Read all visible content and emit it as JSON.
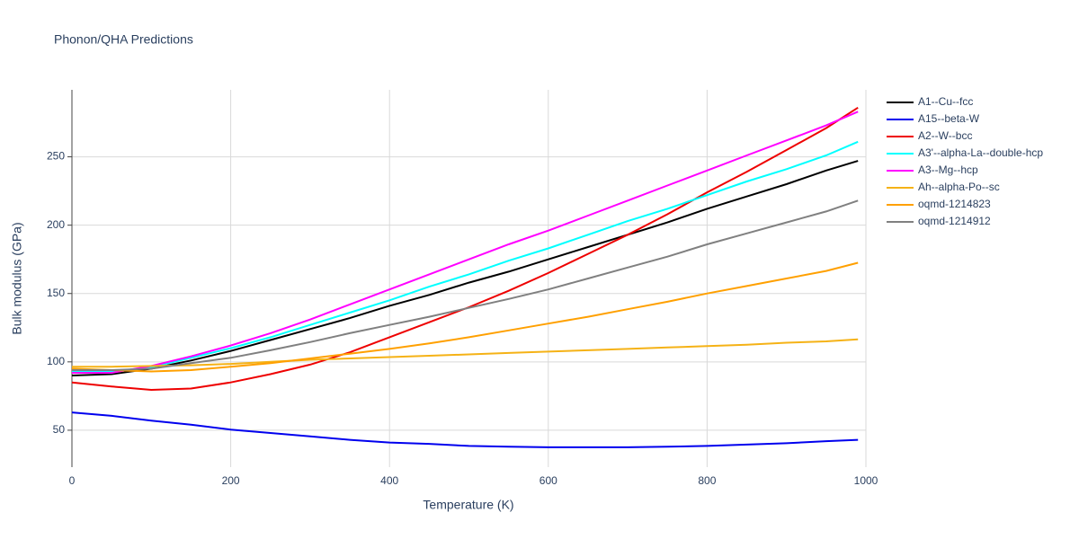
{
  "chart_data": {
    "type": "line",
    "title": "Phonon/QHA Predictions",
    "x_label": "Temperature (K)",
    "y_label": "Bulk modulus (GPa)",
    "x": [
      0,
      50,
      100,
      150,
      200,
      250,
      300,
      350,
      400,
      450,
      500,
      550,
      600,
      650,
      700,
      750,
      800,
      850,
      900,
      950,
      990
    ],
    "series": [
      {
        "name": "A1--Cu--fcc",
        "color": "#000000",
        "values": [
          90,
          91,
          95,
          101,
          108,
          116,
          124,
          132,
          141,
          149,
          158,
          166,
          175,
          184,
          193,
          202,
          212,
          221,
          230,
          240,
          247
        ]
      },
      {
        "name": "A15--beta-W",
        "color": "#0000ee",
        "values": [
          63,
          60.5,
          57,
          54,
          50.5,
          48,
          45.5,
          43,
          41,
          40,
          38.5,
          38,
          37.5,
          37.5,
          37.5,
          38,
          38.5,
          39.5,
          40.5,
          42,
          43
        ]
      },
      {
        "name": "A2--W--bcc",
        "color": "#ee0000",
        "values": [
          85,
          82,
          79.5,
          80.5,
          85,
          91,
          98,
          107,
          118,
          129,
          140,
          152,
          165,
          179,
          193,
          208,
          224,
          239,
          255,
          271,
          286
        ]
      },
      {
        "name": "A3'--alpha-La--double-hcp",
        "color": "#00ffff",
        "values": [
          93,
          93,
          96,
          103,
          110,
          118,
          127,
          136,
          145,
          155,
          164,
          174,
          183,
          193,
          203,
          212,
          222,
          232,
          241,
          251,
          261
        ]
      },
      {
        "name": "A3--Mg--hcp",
        "color": "#ff00ff",
        "values": [
          92,
          92,
          97,
          104,
          112,
          121,
          131,
          142,
          153,
          164,
          175,
          186,
          196,
          207,
          218,
          229,
          240,
          251,
          262,
          273,
          283
        ]
      },
      {
        "name": "Ah--alpha-Po--sc",
        "color": "#f5b216",
        "values": [
          96.5,
          96.5,
          97,
          97.5,
          98.5,
          100,
          101.5,
          102.5,
          103.5,
          104.5,
          105.5,
          106.5,
          107.5,
          108.5,
          109.5,
          110.5,
          111.5,
          112.5,
          114,
          115,
          116.5
        ]
      },
      {
        "name": "oqmd-1214823",
        "color": "#ffa000",
        "values": [
          95,
          94,
          93,
          94,
          96.5,
          99,
          102.5,
          106,
          109.5,
          113.5,
          118,
          123,
          128,
          133,
          138.5,
          144,
          150,
          155.5,
          161,
          166.5,
          172.5
        ]
      },
      {
        "name": "oqmd-1214912",
        "color": "#808080",
        "values": [
          94,
          94,
          95,
          99,
          103,
          108.5,
          114.5,
          121,
          127,
          133,
          139.5,
          146,
          153,
          161,
          169,
          177,
          186,
          194,
          202,
          210,
          218
        ]
      }
    ],
    "xlim": [
      0,
      1000
    ],
    "xticks": [
      0,
      200,
      400,
      600,
      800,
      1000
    ],
    "ylim": [
      23,
      299
    ],
    "yticks": [
      50,
      100,
      150,
      200,
      250
    ],
    "grid": true,
    "legend": "right"
  }
}
